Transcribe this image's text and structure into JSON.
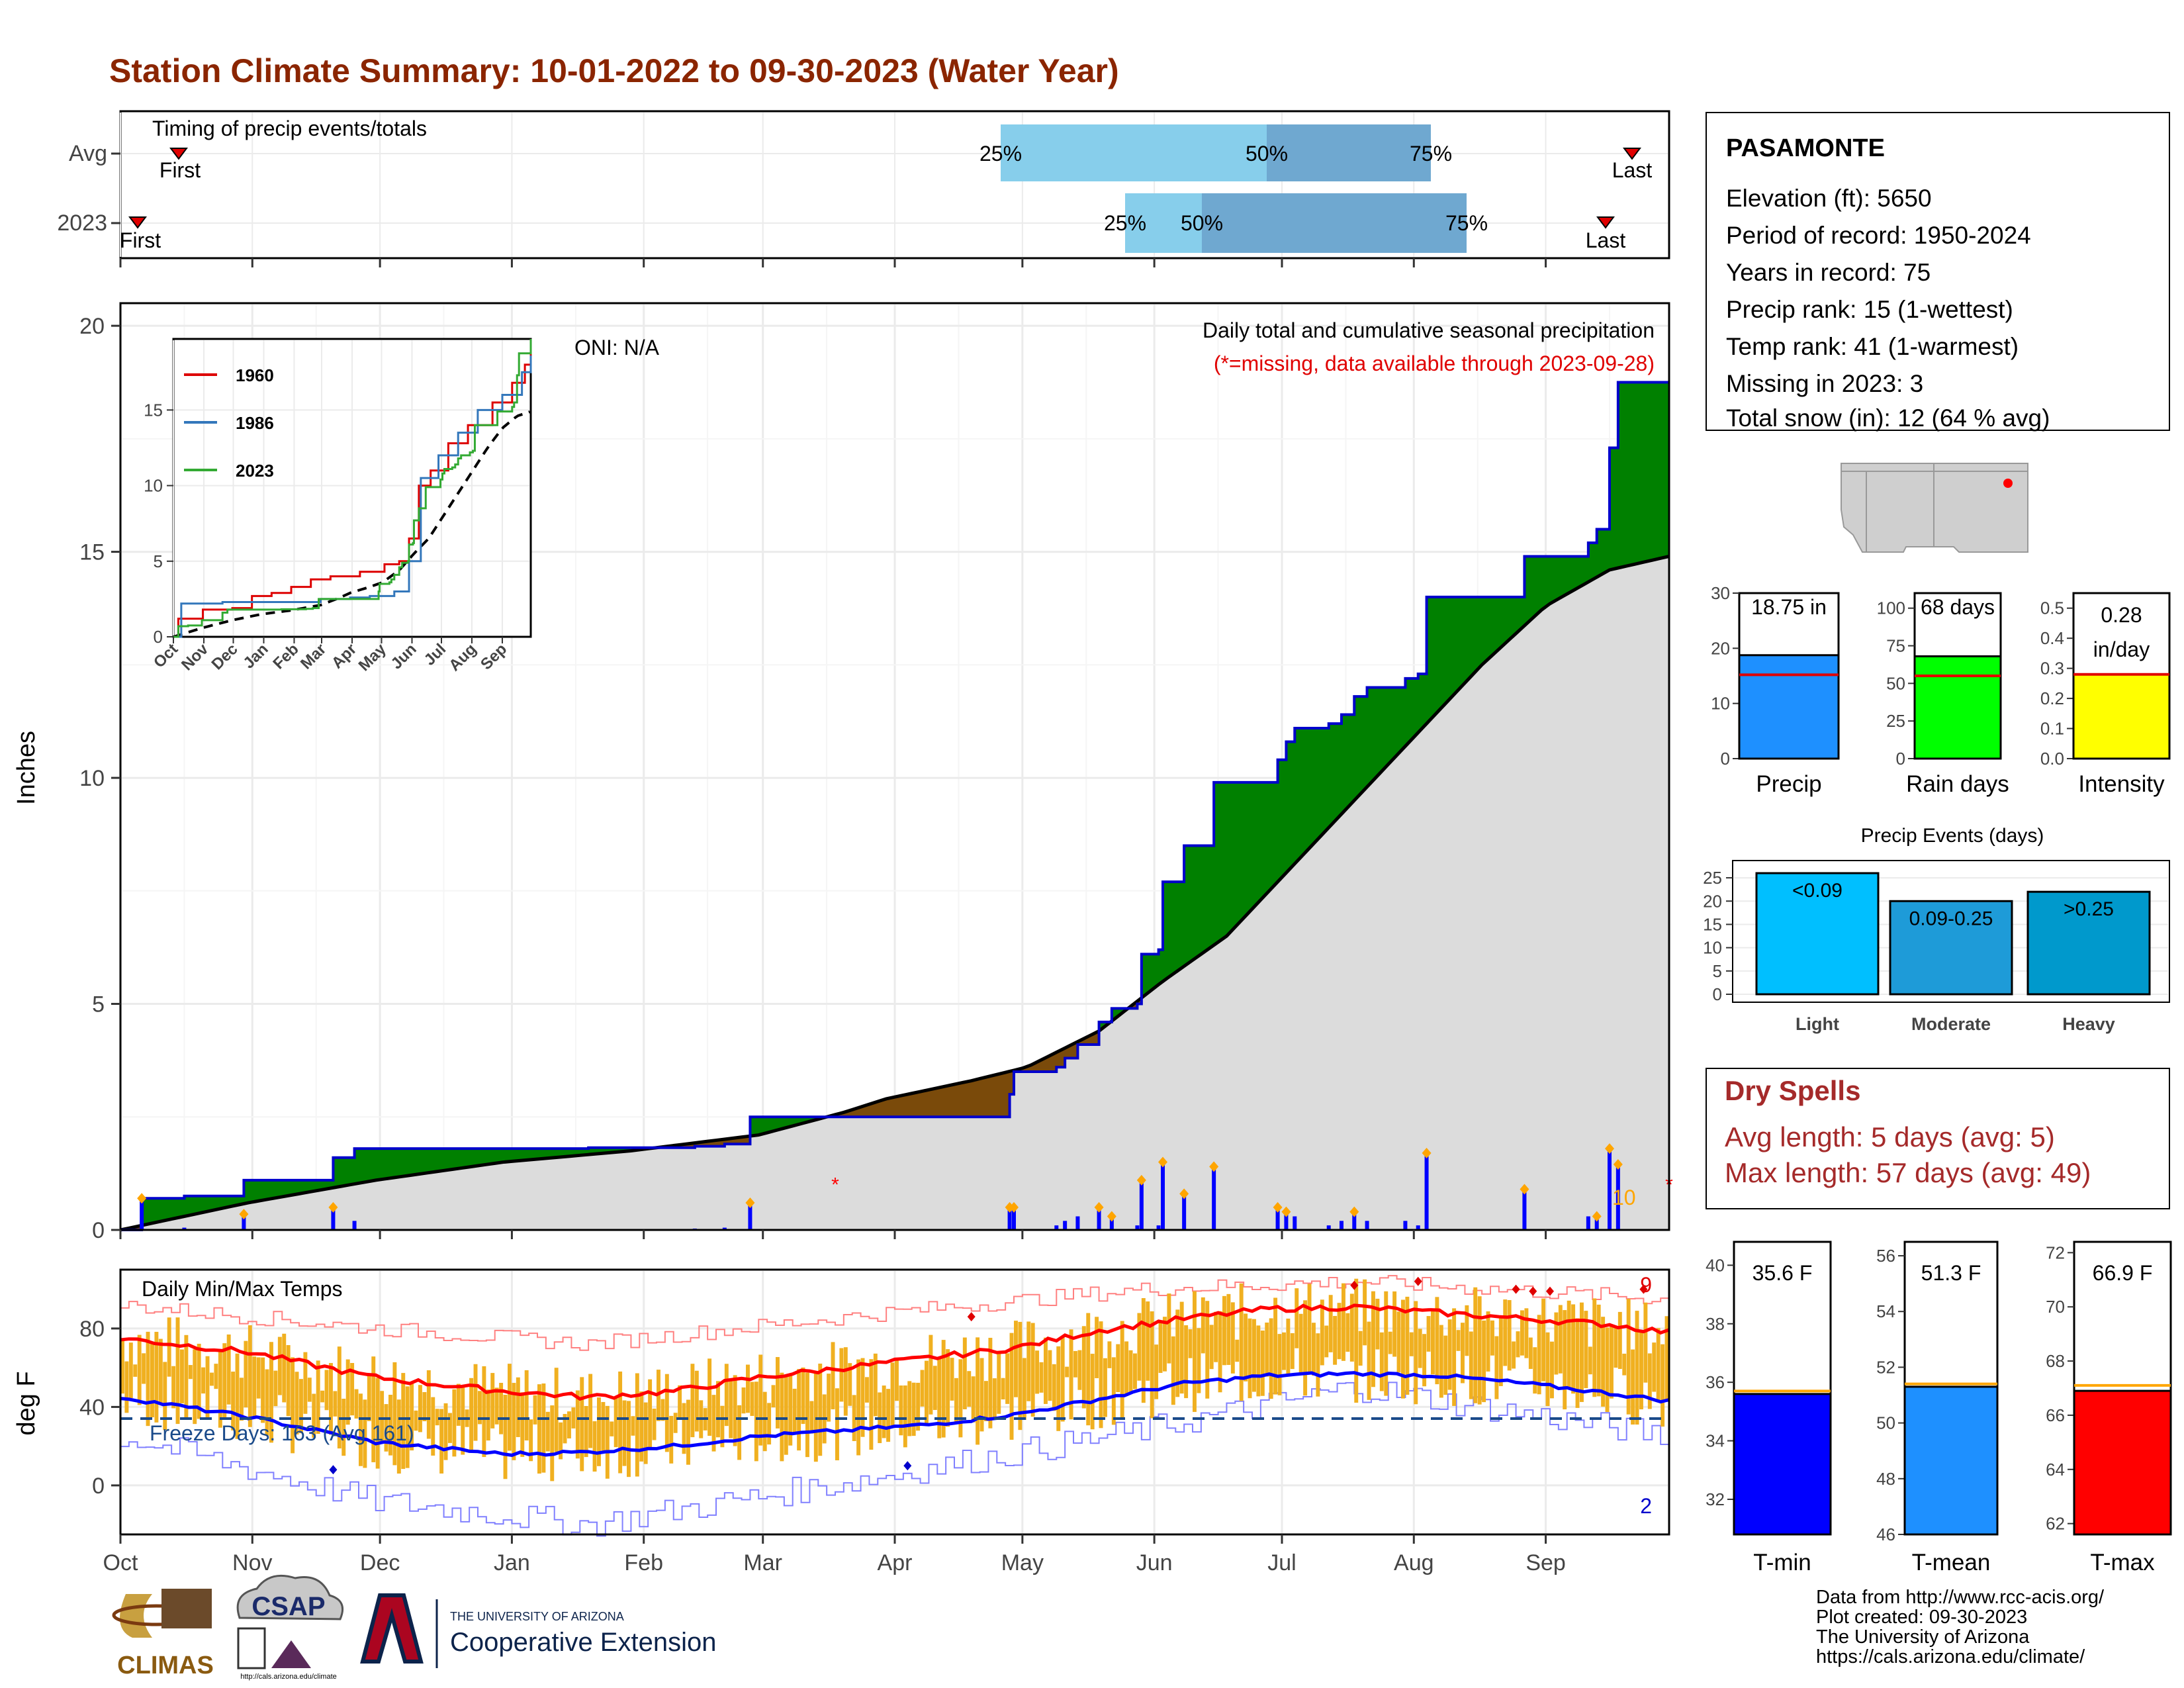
{
  "title": "Station Climate Summary: 10-01-2022 to 09-30-2023 (Water Year)",
  "months": [
    "Oct",
    "Nov",
    "Dec",
    "Jan",
    "Feb",
    "Mar",
    "Apr",
    "May",
    "Jun",
    "Jul",
    "Aug",
    "Sep"
  ],
  "colors": {
    "title": "#8b2500",
    "wetter": "#008000",
    "drier": "#7a4a0a",
    "cumulative_line": "#0000cc",
    "average_area": "#dcdcdc",
    "daily_precip": "#0000ff",
    "temp_bars": "#f0b020",
    "avg_max": "#ff0000",
    "avg_min": "#0000ff",
    "record_high": "#ff8080",
    "record_low": "#8080ff",
    "dry_spells": "#a52a2a",
    "missing": "#ff0000",
    "snow": "#87ceeb",
    "big_event": "#ffa500"
  },
  "timing": {
    "label": "Timing of precip events/totals",
    "rows": [
      "Avg",
      "2023"
    ],
    "first_label": "First",
    "last_label": "Last",
    "pct_labels": [
      "25%",
      "50%",
      "75%"
    ]
  },
  "precip_panel": {
    "ylabel": "Inches",
    "yticks": [
      "0",
      "5",
      "10",
      "15",
      "20"
    ],
    "oni": "ONI: N/A",
    "subtitle": "Daily total and cumulative seasonal precipitation",
    "missing_note": "(*=missing, data available through 2023-09-28)",
    "count_label": "10"
  },
  "inset": {
    "yticks": [
      "0",
      "5",
      "10",
      "15"
    ],
    "xticks": [
      "Oct",
      "Nov",
      "Dec",
      "Jan",
      "Feb",
      "Mar",
      "Apr",
      "May",
      "Jun",
      "Jul",
      "Aug",
      "Sep"
    ],
    "legend": [
      "1960",
      "1986",
      "2023"
    ],
    "colors": [
      "#dd0000",
      "#3377bb",
      "#33aa33"
    ]
  },
  "temp_panel": {
    "ylabel": "deg F",
    "yticks": [
      "0",
      "40",
      "80"
    ],
    "label": "Daily Min/Max Temps",
    "freeze": "Freeze Days: 163 (Avg 161)",
    "high_count": "9",
    "low_count": "2"
  },
  "station": {
    "name": "PASAMONTE",
    "lines": [
      "Elevation (ft): 5650",
      "Period of record: 1950-2024",
      "Years in record: 75",
      "Precip rank: 15 (1-wettest)",
      "Temp rank: 41 (1-warmest)",
      "Missing in 2023: 3",
      "Total snow (in): 12 (64 % avg)"
    ]
  },
  "mini_bars": [
    {
      "label": "Precip",
      "value": 18.75,
      "avg": 15.2,
      "display": "18.75 in",
      "ylim": [
        0,
        30
      ],
      "ticks": [
        "0",
        "10",
        "20",
        "30"
      ],
      "color": "#1e90ff"
    },
    {
      "label": "Rain days",
      "value": 68,
      "avg": 55,
      "display": "68 days",
      "ylim": [
        0,
        110
      ],
      "ticks": [
        "0",
        "25",
        "50",
        "75",
        "100"
      ],
      "color": "#00ff00"
    },
    {
      "label": "Intensity",
      "value": 0.28,
      "avg": 0.28,
      "display": "0.28",
      "display2": "in/day",
      "ylim": [
        0,
        0.55
      ],
      "ticks": [
        "0.0",
        "0.1",
        "0.2",
        "0.3",
        "0.4",
        "0.5"
      ],
      "color": "#ffff00"
    }
  ],
  "events": {
    "title": "Precip Events (days)",
    "categories": [
      "Light",
      "Moderate",
      "Heavy"
    ],
    "labels": [
      "<0.09",
      "0.09-0.25",
      ">0.25"
    ],
    "values": [
      26,
      20,
      22
    ],
    "ylim": [
      0,
      27
    ],
    "ticks": [
      "0",
      "5",
      "10",
      "15",
      "20",
      "25"
    ],
    "colors": [
      "#00bfff",
      "#1e9bd8",
      "#0099cc"
    ]
  },
  "dry_spells": {
    "title": "Dry Spells",
    "avg": "Avg length: 5 days (avg: 5)",
    "max": "Max length: 57 days (avg: 49)"
  },
  "temp_bars": [
    {
      "label": "T-min",
      "value": 35.6,
      "avg": 35.7,
      "display": "35.6 F",
      "ylim": [
        30.8,
        40.8
      ],
      "ticks": [
        "32",
        "34",
        "36",
        "38",
        "40"
      ],
      "color": "#0000ff"
    },
    {
      "label": "T-mean",
      "value": 51.3,
      "avg": 51.4,
      "display": "51.3 F",
      "ylim": [
        46,
        56.5
      ],
      "ticks": [
        "46",
        "48",
        "50",
        "52",
        "54",
        "56"
      ],
      "color": "#1e90ff"
    },
    {
      "label": "T-max",
      "value": 66.9,
      "avg": 67.1,
      "display": "66.9 F",
      "ylim": [
        61.6,
        72.4
      ],
      "ticks": [
        "62",
        "64",
        "66",
        "68",
        "70",
        "72"
      ],
      "color": "#ff0000"
    }
  ],
  "footer": {
    "credits": [
      "Data from http://www.rcc-acis.org/",
      "Plot created: 09-30-2023",
      "The University of Arizona",
      "https://cals.arizona.edu/climate/"
    ],
    "logo_climas": "CLIMAS",
    "logo_csap": "CSAP",
    "logo_csap_url": "http://cals.arizona.edu/climate",
    "logo_ua_small": "THE UNIVERSITY OF ARIZONA",
    "logo_ua_big": "Cooperative Extension"
  },
  "chart_data": [
    {
      "type": "area",
      "title": "Daily total and cumulative seasonal precipitation",
      "ylabel": "Inches",
      "ylim": [
        0,
        20.5
      ],
      "x_unit": "day of water year",
      "cumulative_2023": [
        [
          0,
          0
        ],
        [
          5,
          0.7
        ],
        [
          15,
          0.75
        ],
        [
          29,
          0.75
        ],
        [
          29,
          1.1
        ],
        [
          45,
          1.1
        ],
        [
          50,
          1.6
        ],
        [
          54,
          1.6
        ],
        [
          55,
          1.8
        ],
        [
          110,
          1.82
        ],
        [
          135,
          1.85
        ],
        [
          142,
          1.9
        ],
        [
          147,
          1.9
        ],
        [
          148,
          2.5
        ],
        [
          175,
          2.5
        ],
        [
          185,
          2.5
        ],
        [
          205,
          2.5
        ],
        [
          209,
          3.0
        ],
        [
          210,
          3.5
        ],
        [
          216,
          3.5
        ],
        [
          220,
          3.6
        ],
        [
          222,
          3.8
        ],
        [
          225,
          4.1
        ],
        [
          230,
          4.6
        ],
        [
          233,
          4.9
        ],
        [
          239,
          5.0
        ],
        [
          240,
          6.1
        ],
        [
          244,
          6.2
        ],
        [
          245,
          7.7
        ],
        [
          248,
          7.7
        ],
        [
          250,
          8.5
        ],
        [
          255,
          8.5
        ],
        [
          257,
          9.9
        ],
        [
          270,
          9.9
        ],
        [
          272,
          10.4
        ],
        [
          274,
          10.8
        ],
        [
          276,
          11.1
        ],
        [
          284,
          11.2
        ],
        [
          287,
          11.4
        ],
        [
          290,
          11.8
        ],
        [
          293,
          12.0
        ],
        [
          300,
          12.0
        ],
        [
          302,
          12.2
        ],
        [
          305,
          12.3
        ],
        [
          307,
          14.0
        ],
        [
          318,
          14.0
        ],
        [
          325,
          14.0
        ],
        [
          330,
          14.9
        ],
        [
          340,
          14.9
        ],
        [
          345,
          15.2
        ],
        [
          347,
          15.5
        ],
        [
          350,
          17.3
        ],
        [
          352,
          18.75
        ],
        [
          364,
          18.75
        ]
      ],
      "average_cumulative": [
        [
          0,
          0
        ],
        [
          30,
          0.6
        ],
        [
          60,
          1.1
        ],
        [
          90,
          1.5
        ],
        [
          120,
          1.75
        ],
        [
          150,
          2.1
        ],
        [
          170,
          2.6
        ],
        [
          180,
          2.9
        ],
        [
          200,
          3.3
        ],
        [
          213,
          3.6
        ],
        [
          230,
          4.4
        ],
        [
          245,
          5.5
        ],
        [
          260,
          6.5
        ],
        [
          275,
          8.0
        ],
        [
          290,
          9.5
        ],
        [
          305,
          11.0
        ],
        [
          320,
          12.5
        ],
        [
          335,
          13.8
        ],
        [
          350,
          14.6
        ],
        [
          364,
          14.9
        ]
      ]
    },
    {
      "type": "line",
      "title": "Daily Min/Max Temps",
      "ylabel": "deg F",
      "ylim": [
        -25,
        110
      ],
      "x_unit": "day of water year",
      "avg_max": [
        [
          0,
          75
        ],
        [
          30,
          68
        ],
        [
          60,
          55
        ],
        [
          90,
          48
        ],
        [
          110,
          45
        ],
        [
          130,
          48
        ],
        [
          150,
          55
        ],
        [
          170,
          60
        ],
        [
          190,
          65
        ],
        [
          210,
          70
        ],
        [
          230,
          79
        ],
        [
          250,
          85
        ],
        [
          270,
          90
        ],
        [
          290,
          91
        ],
        [
          310,
          88
        ],
        [
          330,
          85
        ],
        [
          350,
          82
        ],
        [
          364,
          78
        ]
      ],
      "avg_min": [
        [
          0,
          45
        ],
        [
          30,
          35
        ],
        [
          60,
          22
        ],
        [
          90,
          16
        ],
        [
          110,
          17
        ],
        [
          130,
          20
        ],
        [
          150,
          25
        ],
        [
          170,
          28
        ],
        [
          190,
          31
        ],
        [
          210,
          36
        ],
        [
          230,
          44
        ],
        [
          250,
          52
        ],
        [
          270,
          56
        ],
        [
          290,
          57
        ],
        [
          310,
          56
        ],
        [
          330,
          52
        ],
        [
          350,
          47
        ],
        [
          364,
          43
        ]
      ],
      "record_high": [
        [
          0,
          92
        ],
        [
          60,
          80
        ],
        [
          110,
          72
        ],
        [
          180,
          88
        ],
        [
          240,
          100
        ],
        [
          290,
          104
        ],
        [
          364,
          95
        ]
      ],
      "record_low": [
        [
          0,
          25
        ],
        [
          60,
          -8
        ],
        [
          110,
          -20
        ],
        [
          180,
          5
        ],
        [
          240,
          28
        ],
        [
          290,
          50
        ],
        [
          364,
          25
        ]
      ]
    }
  ]
}
